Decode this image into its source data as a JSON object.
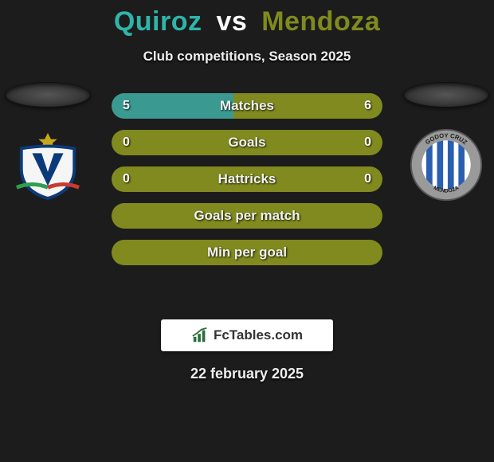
{
  "header": {
    "player1": "Quiroz",
    "vs": "vs",
    "player2": "Mendoza",
    "player1_color": "#2fb4a9",
    "vs_color": "#ffffff",
    "player2_color": "#808a1e",
    "subtitle": "Club competitions, Season 2025"
  },
  "stats": {
    "left_color": "#3a9a91",
    "right_color": "#808a1e",
    "full_color": "#808a1e",
    "bar_track_color": "#333333",
    "rows": [
      {
        "label": "Matches",
        "left": "5",
        "right": "6",
        "left_pct": 45,
        "right_pct": 55,
        "mode": "split"
      },
      {
        "label": "Goals",
        "left": "0",
        "right": "0",
        "left_pct": 0,
        "right_pct": 0,
        "mode": "full"
      },
      {
        "label": "Hattricks",
        "left": "0",
        "right": "0",
        "left_pct": 0,
        "right_pct": 0,
        "mode": "full"
      },
      {
        "label": "Goals per match",
        "left": "",
        "right": "",
        "left_pct": 0,
        "right_pct": 0,
        "mode": "full"
      },
      {
        "label": "Min per goal",
        "left": "",
        "right": "",
        "left_pct": 0,
        "right_pct": 0,
        "mode": "full"
      }
    ]
  },
  "crests": {
    "left": {
      "name": "velez-crest",
      "shield_fill": "#f5f5f5",
      "shield_stroke": "#0b3a7a",
      "v_color": "#0b3a7a",
      "star_color": "#c7a61a",
      "ribbon_green": "#2e9e4f",
      "ribbon_red": "#c83b2e"
    },
    "right": {
      "name": "godoy-cruz-crest",
      "ring_fill": "#9a9a9a",
      "ring_text_color": "#1c1c1c",
      "inner_fill": "#ffffff",
      "stripe_color": "#2a5fb0",
      "top_text": "GODOY CRUZ",
      "bottom_text": "MENDOZA"
    }
  },
  "attribution": {
    "text": "FcTables.com",
    "icon_color": "#2b6f3a",
    "text_color": "#333333"
  },
  "footer": {
    "date": "22 february 2025"
  }
}
